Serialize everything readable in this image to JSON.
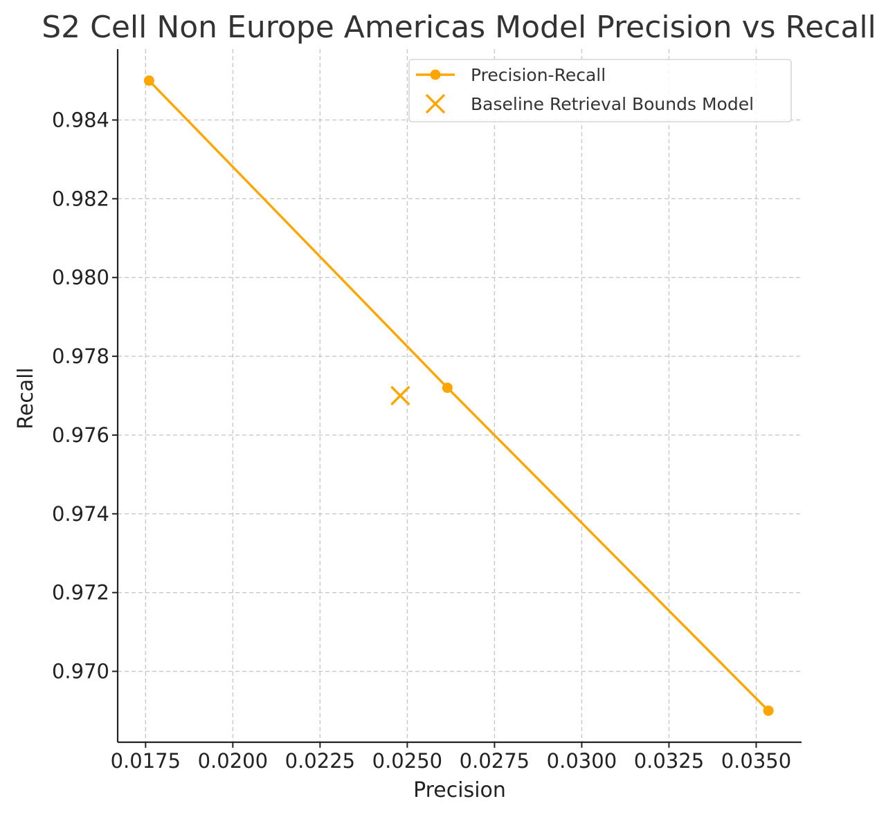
{
  "chart_data": {
    "type": "line",
    "title": "S2 Cell Non Europe Americas Model Precision vs Recall",
    "xlabel": "Precision",
    "ylabel": "Recall",
    "xlim": [
      0.0167,
      0.0363
    ],
    "ylim": [
      0.9682,
      0.9858
    ],
    "xticks": [
      0.0175,
      0.02,
      0.0225,
      0.025,
      0.0275,
      0.03,
      0.0325,
      0.035
    ],
    "xtick_labels": [
      "0.0175",
      "0.0200",
      "0.0225",
      "0.0250",
      "0.0275",
      "0.0300",
      "0.0325",
      "0.0350"
    ],
    "yticks": [
      0.97,
      0.972,
      0.974,
      0.976,
      0.978,
      0.98,
      0.982,
      0.984
    ],
    "ytick_labels": [
      "0.970",
      "0.972",
      "0.974",
      "0.976",
      "0.978",
      "0.980",
      "0.982",
      "0.984"
    ],
    "grid": true,
    "legend_position": "top-right",
    "series": [
      {
        "name": "Precision-Recall",
        "kind": "line-with-markers",
        "color": "#FFA500",
        "x": [
          0.0176,
          0.02615,
          0.03535
        ],
        "y": [
          0.985,
          0.9772,
          0.969
        ]
      },
      {
        "name": "Baseline Retrieval Bounds Model",
        "kind": "scatter-x",
        "color": "#FFA500",
        "x": [
          0.0248
        ],
        "y": [
          0.977
        ]
      }
    ]
  }
}
